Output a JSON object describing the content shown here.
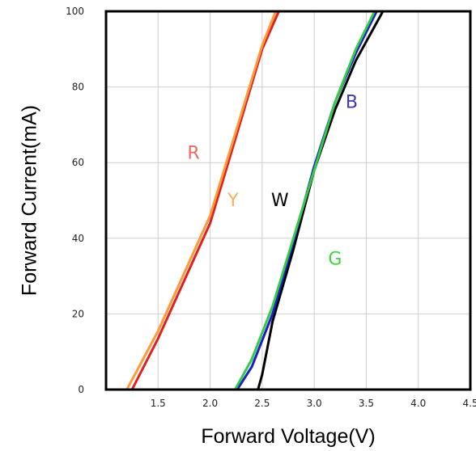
{
  "chart_data": {
    "type": "line",
    "title": "",
    "xlabel": "Forward Voltage(V)",
    "ylabel": "Forward Current(mA)",
    "xlim": [
      1.0,
      4.5
    ],
    "ylim": [
      0,
      100
    ],
    "x_ticks": [
      "1.5",
      "2.0",
      "2.5",
      "3.0",
      "3.5",
      "4.0",
      "4.5"
    ],
    "y_ticks": [
      "0",
      "20",
      "40",
      "60",
      "80",
      "100"
    ],
    "grid": true,
    "series": [
      {
        "name": "R",
        "color": "#e02020",
        "label_color": "#e86a6a",
        "label_at": [
          1.84,
          61
        ],
        "x": [
          1.25,
          1.5,
          2.0,
          2.5,
          2.66
        ],
        "y": [
          0,
          13.5,
          44,
          90,
          100
        ]
      },
      {
        "name": "Y",
        "color": "#ff9a3a",
        "label_color": "#ffad5a",
        "label_at": [
          2.22,
          48.5
        ],
        "x": [
          1.2,
          1.5,
          2.0,
          2.5,
          2.63
        ],
        "y": [
          0,
          15.5,
          46,
          91,
          100
        ]
      },
      {
        "name": "W",
        "color": "#000000",
        "label_color": "#000000",
        "label_at": [
          2.67,
          48.5
        ],
        "x": [
          2.46,
          2.5,
          2.6,
          2.8,
          3.0,
          3.2,
          3.4,
          3.66
        ],
        "y": [
          0,
          4,
          18,
          37,
          58,
          74,
          87,
          100
        ]
      },
      {
        "name": "B",
        "color": "#1c1ccc",
        "label_color": "#3a3ab5",
        "label_at": [
          3.36,
          74.5
        ],
        "x": [
          2.26,
          2.4,
          2.6,
          2.8,
          3.0,
          3.2,
          3.4,
          3.6
        ],
        "y": [
          0,
          6,
          20,
          39,
          59,
          76,
          89,
          100
        ]
      },
      {
        "name": "G",
        "color": "#33cc44",
        "label_color": "#3fd53f",
        "label_at": [
          3.2,
          33
        ],
        "x": [
          2.24,
          2.4,
          2.6,
          2.8,
          3.0,
          3.2,
          3.4,
          3.58
        ],
        "y": [
          0,
          8,
          22,
          40,
          58,
          76,
          90,
          100
        ]
      }
    ]
  }
}
